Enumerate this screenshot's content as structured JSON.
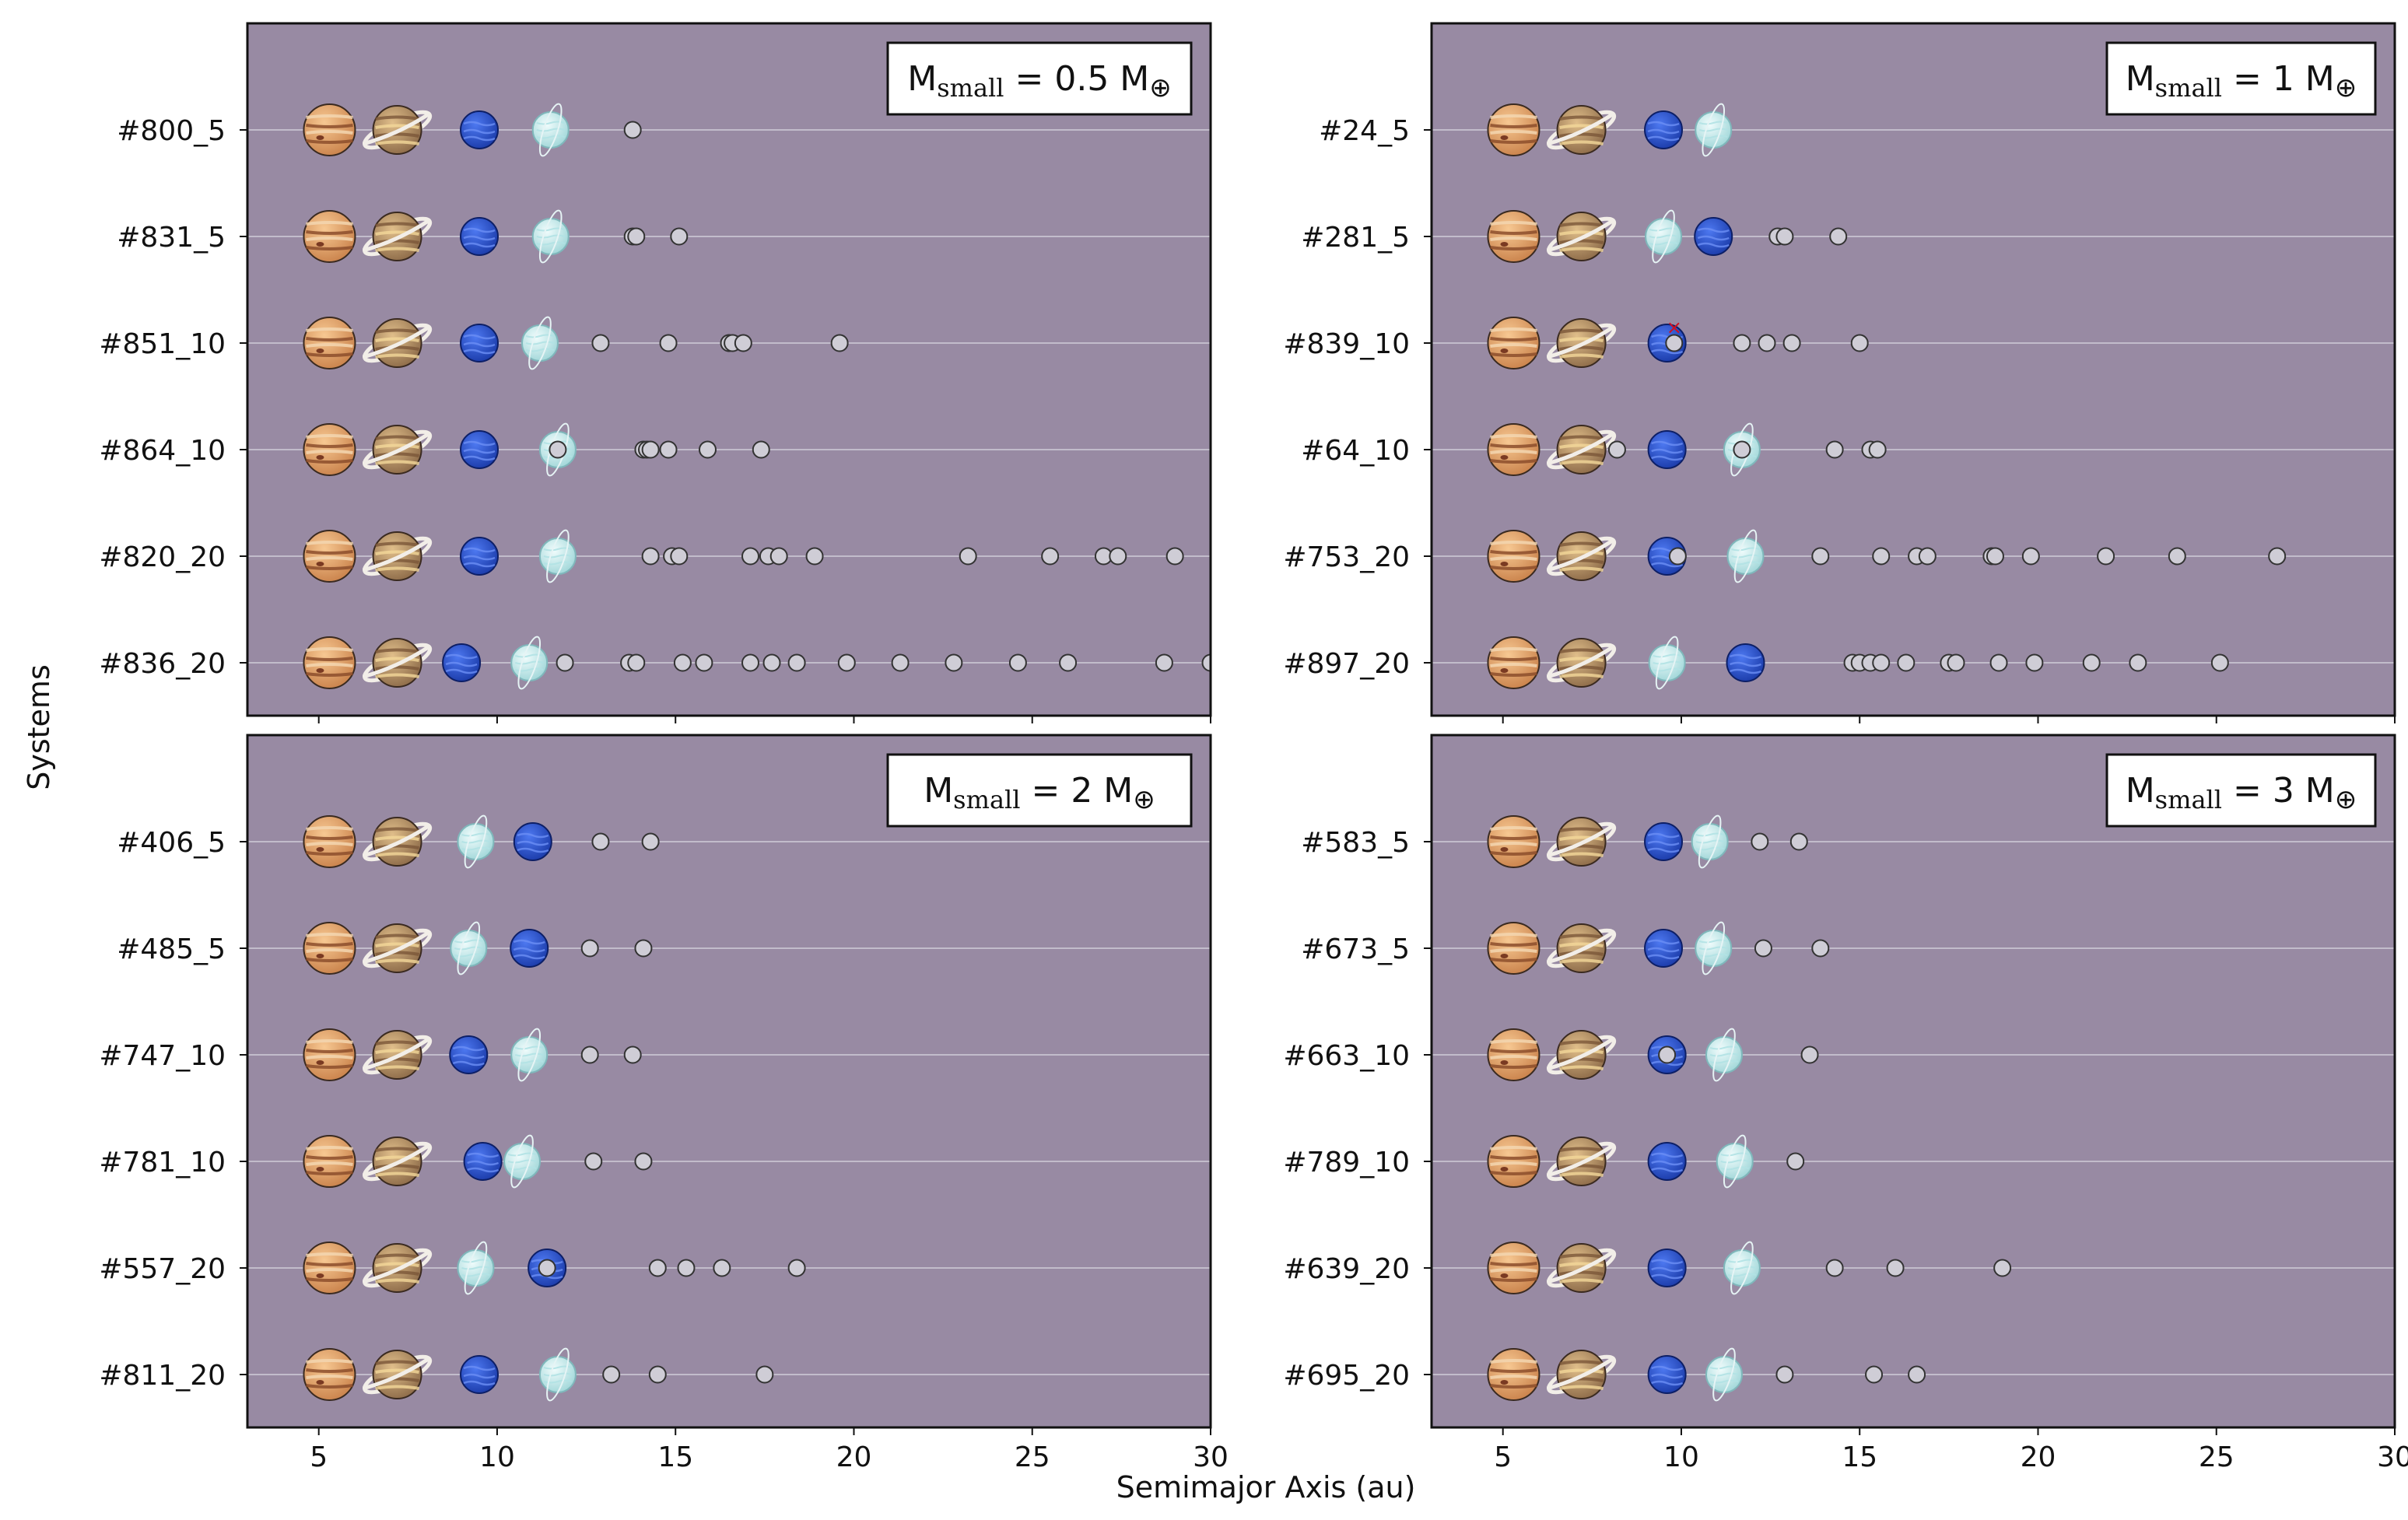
{
  "colors": {
    "panel_bg": "#988aa3",
    "grid": "#c2bccb",
    "frame": "#111111",
    "small_body": "#cfcdd6",
    "small_body_edge": "#333333",
    "jupiter": "#e8a870",
    "saturn": "#c9a06a",
    "neptune": "#2450d8",
    "uranus": "#c8ecee"
  },
  "icons": {
    "jupiter": "jupiter-icon",
    "saturn": "saturn-icon",
    "neptune": "neptune-icon",
    "uranus": "uranus-icon",
    "small_body": "small-body-icon"
  },
  "chart_data": {
    "type": "scatter",
    "xlabel": "Semimajor Axis (au)",
    "ylabel": "Systems",
    "xlim": [
      3,
      30
    ],
    "x_ticks": [
      5,
      10,
      15,
      20,
      25,
      30
    ],
    "panels": [
      {
        "legend": {
          "prefix": "M",
          "sub": "small",
          "value": " = 0.5 M",
          "symbol": "⊕"
        },
        "systems": [
          {
            "name": "#800_5",
            "jupiter": 5.3,
            "saturn": 7.2,
            "neptune": 9.5,
            "uranus": 11.5,
            "small": [
              13.8
            ]
          },
          {
            "name": "#831_5",
            "jupiter": 5.3,
            "saturn": 7.2,
            "neptune": 9.5,
            "uranus": 11.5,
            "small": [
              13.8,
              13.9,
              15.1
            ]
          },
          {
            "name": "#851_10",
            "jupiter": 5.3,
            "saturn": 7.2,
            "neptune": 9.5,
            "uranus": 11.2,
            "small": [
              12.9,
              14.8,
              16.5,
              16.6,
              16.9,
              19.6
            ]
          },
          {
            "name": "#864_10",
            "jupiter": 5.3,
            "saturn": 7.2,
            "neptune": 9.5,
            "uranus": 11.7,
            "small": [
              11.7,
              14.1,
              14.2,
              14.3,
              14.8,
              15.9,
              17.4
            ]
          },
          {
            "name": "#820_20",
            "jupiter": 5.3,
            "saturn": 7.2,
            "neptune": 9.5,
            "uranus": 11.7,
            "small": [
              14.3,
              14.9,
              15.1,
              17.1,
              17.6,
              17.9,
              18.9,
              23.2,
              25.5,
              27.0,
              27.4,
              29.0
            ]
          },
          {
            "name": "#836_20",
            "jupiter": 5.3,
            "saturn": 7.2,
            "neptune": 9.0,
            "uranus": 10.9,
            "small": [
              11.9,
              13.7,
              13.9,
              15.2,
              15.8,
              17.1,
              17.7,
              18.4,
              19.8,
              21.3,
              22.8,
              24.6,
              26.0,
              28.7,
              30.0
            ]
          }
        ]
      },
      {
        "legend": {
          "prefix": "M",
          "sub": "small",
          "value": " = 1 M",
          "symbol": "⊕"
        },
        "systems": [
          {
            "name": "#24_5",
            "jupiter": 5.3,
            "saturn": 7.2,
            "neptune": 9.5,
            "uranus": 10.9,
            "small": []
          },
          {
            "name": "#281_5",
            "jupiter": 5.3,
            "saturn": 7.2,
            "neptune": 10.9,
            "uranus": 9.5,
            "small": [
              12.7,
              12.9,
              14.4
            ]
          },
          {
            "name": "#839_10",
            "jupiter": 5.3,
            "saturn": 7.2,
            "neptune": 9.6,
            "uranus": null,
            "small": [
              9.8,
              11.7,
              12.4,
              13.1,
              15.0
            ],
            "marker": {
              "x": 9.8,
              "label": "×"
            }
          },
          {
            "name": "#64_10",
            "jupiter": 5.3,
            "saturn": 7.2,
            "neptune": 9.6,
            "uranus": 11.7,
            "small": [
              8.2,
              11.7,
              14.3,
              15.3,
              15.5
            ]
          },
          {
            "name": "#753_20",
            "jupiter": 5.3,
            "saturn": 7.2,
            "neptune": 9.6,
            "uranus": 11.8,
            "small": [
              9.9,
              13.9,
              15.6,
              16.6,
              16.9,
              18.7,
              18.8,
              19.8,
              21.9,
              23.9,
              26.7
            ]
          },
          {
            "name": "#897_20",
            "jupiter": 5.3,
            "saturn": 7.2,
            "neptune": 11.8,
            "uranus": 9.6,
            "small": [
              14.8,
              15.0,
              15.3,
              15.6,
              16.3,
              17.5,
              17.7,
              18.9,
              19.9,
              21.5,
              22.8,
              25.1
            ]
          }
        ]
      },
      {
        "legend": {
          "prefix": "M",
          "sub": "small",
          "value": " = 2 M",
          "symbol": "⊕"
        },
        "systems": [
          {
            "name": "#406_5",
            "jupiter": 5.3,
            "saturn": 7.2,
            "neptune": 11.0,
            "uranus": 9.4,
            "small": [
              12.9,
              14.3
            ]
          },
          {
            "name": "#485_5",
            "jupiter": 5.3,
            "saturn": 7.2,
            "neptune": 10.9,
            "uranus": 9.2,
            "small": [
              12.6,
              14.1
            ]
          },
          {
            "name": "#747_10",
            "jupiter": 5.3,
            "saturn": 7.2,
            "neptune": 9.2,
            "uranus": 10.9,
            "small": [
              12.6,
              13.8
            ]
          },
          {
            "name": "#781_10",
            "jupiter": 5.3,
            "saturn": 7.2,
            "neptune": 9.6,
            "uranus": 10.7,
            "small": [
              12.7,
              14.1
            ]
          },
          {
            "name": "#557_20",
            "jupiter": 5.3,
            "saturn": 7.2,
            "neptune": 11.4,
            "uranus": 9.4,
            "small": [
              11.4,
              14.5,
              15.3,
              16.3,
              18.4
            ]
          },
          {
            "name": "#811_20",
            "jupiter": 5.3,
            "saturn": 7.2,
            "neptune": 9.5,
            "uranus": 11.7,
            "small": [
              13.2,
              14.5,
              17.5
            ]
          }
        ]
      },
      {
        "legend": {
          "prefix": "M",
          "sub": "small",
          "value": " = 3 M",
          "symbol": "⊕"
        },
        "systems": [
          {
            "name": "#583_5",
            "jupiter": 5.3,
            "saturn": 7.2,
            "neptune": 9.5,
            "uranus": 10.8,
            "small": [
              12.2,
              13.3
            ]
          },
          {
            "name": "#673_5",
            "jupiter": 5.3,
            "saturn": 7.2,
            "neptune": 9.5,
            "uranus": 10.9,
            "small": [
              12.3,
              13.9
            ]
          },
          {
            "name": "#663_10",
            "jupiter": 5.3,
            "saturn": 7.2,
            "neptune": 9.6,
            "uranus": 11.2,
            "small": [
              9.6,
              13.6
            ]
          },
          {
            "name": "#789_10",
            "jupiter": 5.3,
            "saturn": 7.2,
            "neptune": 9.6,
            "uranus": 11.5,
            "small": [
              13.2
            ]
          },
          {
            "name": "#639_20",
            "jupiter": 5.3,
            "saturn": 7.2,
            "neptune": 9.6,
            "uranus": 11.7,
            "small": [
              14.3,
              16.0,
              19.0
            ]
          },
          {
            "name": "#695_20",
            "jupiter": 5.3,
            "saturn": 7.2,
            "neptune": 9.6,
            "uranus": 11.2,
            "small": [
              12.9,
              15.4,
              16.6
            ]
          }
        ]
      }
    ]
  }
}
